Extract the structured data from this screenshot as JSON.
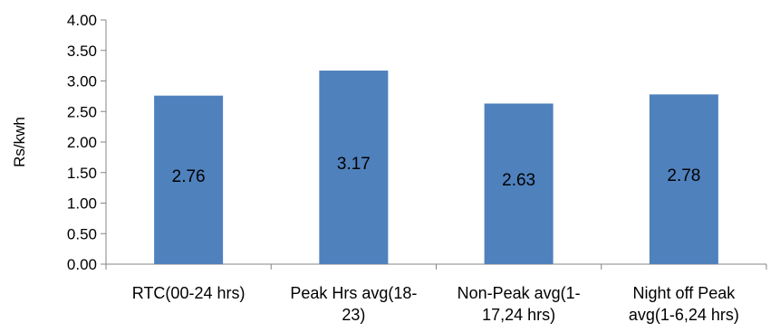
{
  "chart_data": {
    "type": "bar",
    "categories": [
      [
        "RTC(00-24 hrs)"
      ],
      [
        "Peak Hrs avg(18-",
        "23)"
      ],
      [
        "Non-Peak avg(1-",
        "17,24 hrs)"
      ],
      [
        "Night off Peak",
        "avg(1-6,24 hrs)"
      ]
    ],
    "values": [
      2.76,
      3.17,
      2.63,
      2.78
    ],
    "data_labels": [
      "2.76",
      "3.17",
      "2.63",
      "2.78"
    ],
    "ylabel": "Rs/kwh",
    "ylim": [
      0,
      4
    ],
    "yticks": [
      "0.00",
      "0.50",
      "1.00",
      "1.50",
      "2.00",
      "2.50",
      "3.00",
      "3.50",
      "4.00"
    ],
    "grid": false,
    "bar_color": "#4F81BD"
  }
}
